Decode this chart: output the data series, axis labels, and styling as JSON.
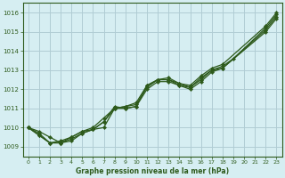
{
  "title": "Graphe pression niveau de la mer (hPa)",
  "background_color": "#d6eef2",
  "grid_color": "#b0ccd4",
  "line_color": "#2d5a1b",
  "text_color": "#2d5a1b",
  "ylim": [
    1008.5,
    1016.5
  ],
  "yticks": [
    1009,
    1010,
    1011,
    1012,
    1013,
    1014,
    1015,
    1016
  ],
  "xlim": [
    -0.5,
    23.5
  ],
  "xticks": [
    0,
    1,
    2,
    3,
    4,
    5,
    6,
    7,
    8,
    9,
    10,
    11,
    12,
    13,
    14,
    15,
    16,
    17,
    18,
    19,
    20,
    21,
    22,
    23
  ],
  "series": [
    {
      "x": [
        0,
        1,
        2,
        3,
        4,
        5,
        6,
        7,
        8,
        9,
        10,
        11,
        12,
        13,
        14,
        15,
        16,
        17,
        18,
        19,
        22,
        23
      ],
      "y": [
        1010.0,
        1009.8,
        1009.5,
        1009.2,
        1009.3,
        1009.7,
        1009.9,
        1010.0,
        1011.0,
        1011.1,
        1011.2,
        1012.1,
        1012.5,
        1012.5,
        1012.3,
        1012.1,
        1012.6,
        1013.0,
        1013.2,
        1013.6,
        1015.2,
        1015.9
      ]
    },
    {
      "x": [
        0,
        1,
        2,
        3,
        4,
        5,
        6,
        7,
        8,
        9,
        10,
        11,
        12,
        13,
        14,
        15,
        16,
        17,
        18,
        22,
        23
      ],
      "y": [
        1010.0,
        1009.7,
        1009.2,
        1009.2,
        1009.5,
        1009.8,
        1009.9,
        1010.3,
        1011.1,
        1011.0,
        1011.1,
        1012.2,
        1012.5,
        1012.5,
        1012.2,
        1012.1,
        1012.5,
        1013.0,
        1013.1,
        1015.1,
        1015.8
      ]
    },
    {
      "x": [
        0,
        1,
        2,
        3,
        4,
        5,
        6,
        7,
        8,
        9,
        10,
        11,
        12,
        13,
        14,
        15,
        16,
        17,
        18,
        22,
        23
      ],
      "y": [
        1010.0,
        1009.6,
        1009.2,
        1009.3,
        1009.5,
        1009.8,
        1010.0,
        1010.5,
        1011.0,
        1011.1,
        1011.3,
        1012.2,
        1012.5,
        1012.6,
        1012.3,
        1012.2,
        1012.7,
        1013.1,
        1013.3,
        1015.3,
        1016.0
      ]
    },
    {
      "x": [
        0,
        1,
        2,
        3,
        4,
        5,
        6,
        7,
        8,
        9,
        10,
        11,
        12,
        13,
        14,
        15,
        16,
        17,
        18,
        22,
        23
      ],
      "y": [
        1010.0,
        1009.6,
        1009.2,
        1009.2,
        1009.4,
        1009.7,
        1009.9,
        1010.3,
        1011.0,
        1011.0,
        1011.1,
        1012.0,
        1012.4,
        1012.4,
        1012.2,
        1012.0,
        1012.4,
        1012.9,
        1013.1,
        1015.0,
        1015.7
      ]
    }
  ]
}
